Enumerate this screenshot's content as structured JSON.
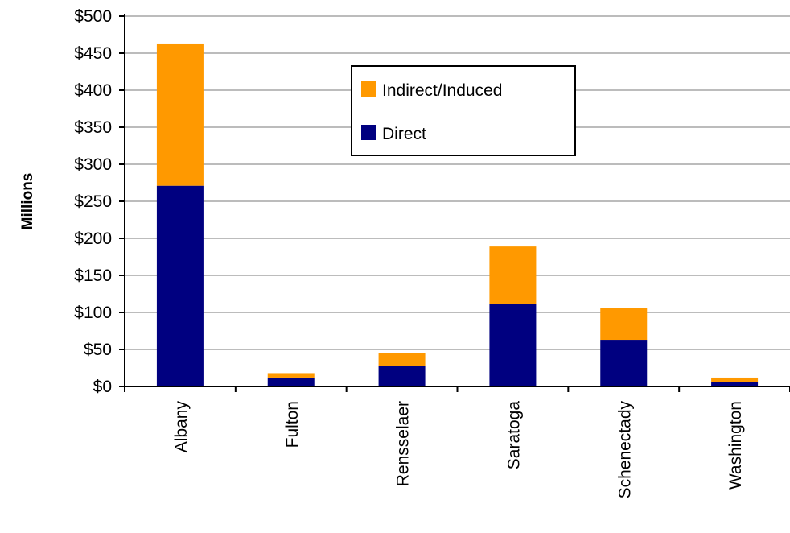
{
  "chart_data": {
    "type": "bar",
    "stacked": true,
    "title": "",
    "xlabel": "",
    "ylabel": "Millions",
    "ylim": [
      0,
      500
    ],
    "y_ticks": [
      0,
      50,
      100,
      150,
      200,
      250,
      300,
      350,
      400,
      450,
      500
    ],
    "y_tick_labels": [
      "$0",
      "$50",
      "$100",
      "$150",
      "$200",
      "$250",
      "$300",
      "$350",
      "$400",
      "$450",
      "$500"
    ],
    "categories": [
      "Albany",
      "Fulton",
      "Rensselaer",
      "Saratoga",
      "Schenectady",
      "Washington"
    ],
    "series": [
      {
        "name": "Direct",
        "color": "#000080",
        "values": [
          271,
          12,
          28,
          111,
          63,
          6
        ]
      },
      {
        "name": "Indirect/Induced",
        "color": "#FF9900",
        "values": [
          191,
          6,
          17,
          78,
          43,
          6
        ]
      }
    ],
    "legend": {
      "placement": "top-center",
      "entries": [
        "Indirect/Induced",
        "Direct"
      ]
    },
    "grid": true
  }
}
